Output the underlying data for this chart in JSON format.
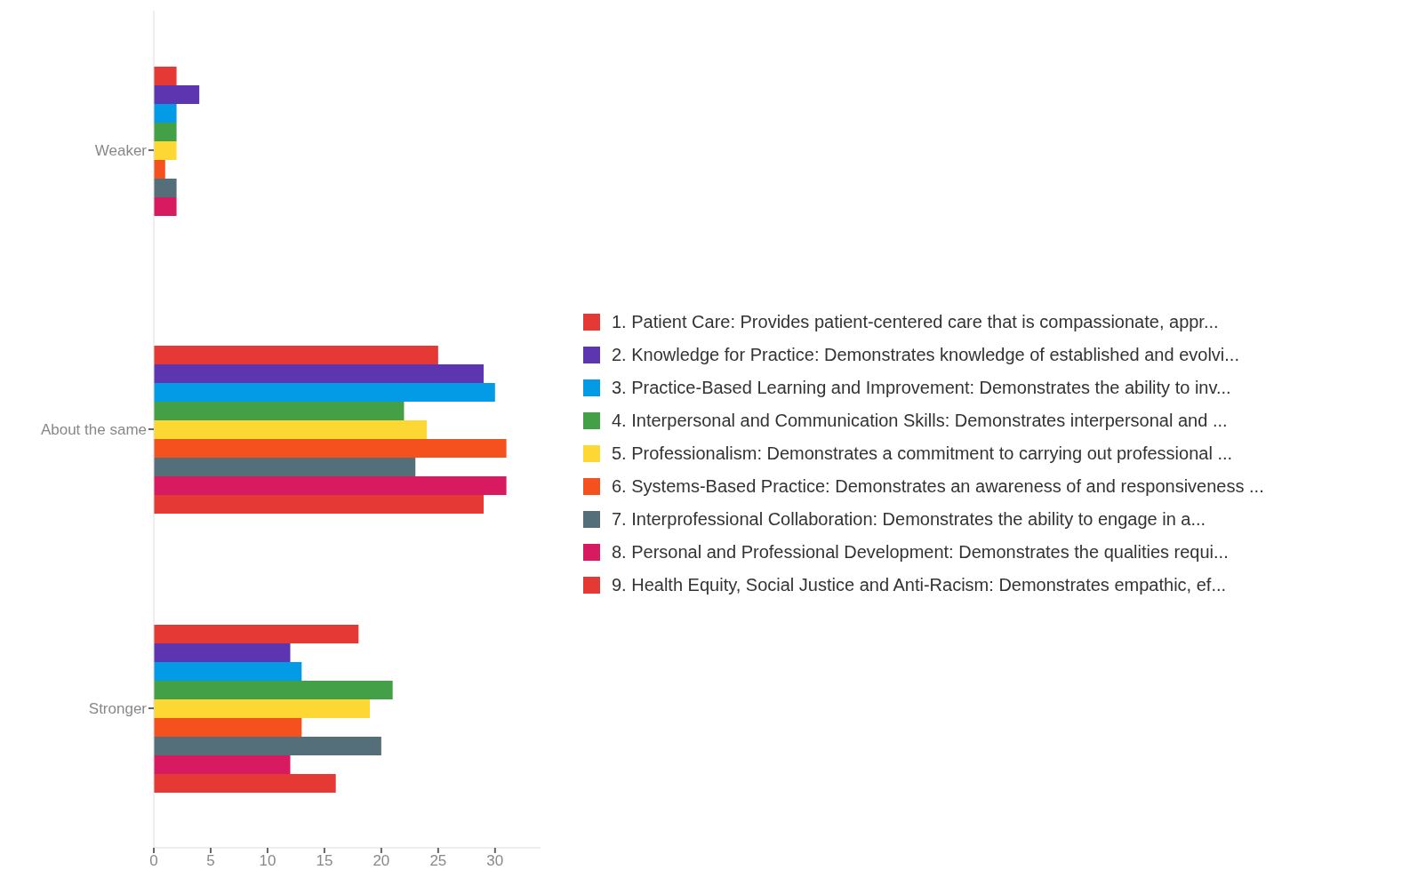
{
  "chart_data": {
    "type": "bar",
    "orientation": "horizontal",
    "categories": [
      "Weaker",
      "About the same",
      "Stronger"
    ],
    "series": [
      {
        "name": "1. Patient Care: Provides patient-centered care that is compassionate, appr...",
        "color": "#e53935",
        "values": [
          2,
          25,
          18
        ]
      },
      {
        "name": "2. Knowledge for Practice: Demonstrates knowledge of established and evolvi...",
        "color": "#5e35b1",
        "values": [
          4,
          29,
          12
        ]
      },
      {
        "name": "3. Practice-Based Learning and Improvement: Demonstrates the ability to inv...",
        "color": "#039be5",
        "values": [
          2,
          30,
          13
        ]
      },
      {
        "name": "4. Interpersonal and Communication Skills: Demonstrates interpersonal and ...",
        "color": "#43a047",
        "values": [
          2,
          22,
          21
        ]
      },
      {
        "name": "5. Professionalism: Demonstrates a commitment to carrying out professional ...",
        "color": "#fdd835",
        "values": [
          2,
          24,
          19
        ]
      },
      {
        "name": "6. Systems-Based Practice: Demonstrates an awareness of and responsiveness ...",
        "color": "#f4511e",
        "values": [
          1,
          31,
          13
        ]
      },
      {
        "name": "7. Interprofessional Collaboration: Demonstrates the ability to engage in a...",
        "color": "#546e7a",
        "values": [
          2,
          23,
          20
        ]
      },
      {
        "name": "8. Personal and Professional Development: Demonstrates the qualities requi...",
        "color": "#d81b60",
        "values": [
          2,
          31,
          12
        ]
      },
      {
        "name": "9. Health Equity, Social Justice and Anti-Racism: Demonstrates empathic, ef...",
        "color": "#e53935",
        "values": [
          0,
          29,
          16
        ]
      }
    ],
    "xlim": [
      0,
      34
    ],
    "xticks": [
      0,
      5,
      10,
      15,
      20,
      25,
      30
    ],
    "grid": false,
    "legend": "right"
  }
}
